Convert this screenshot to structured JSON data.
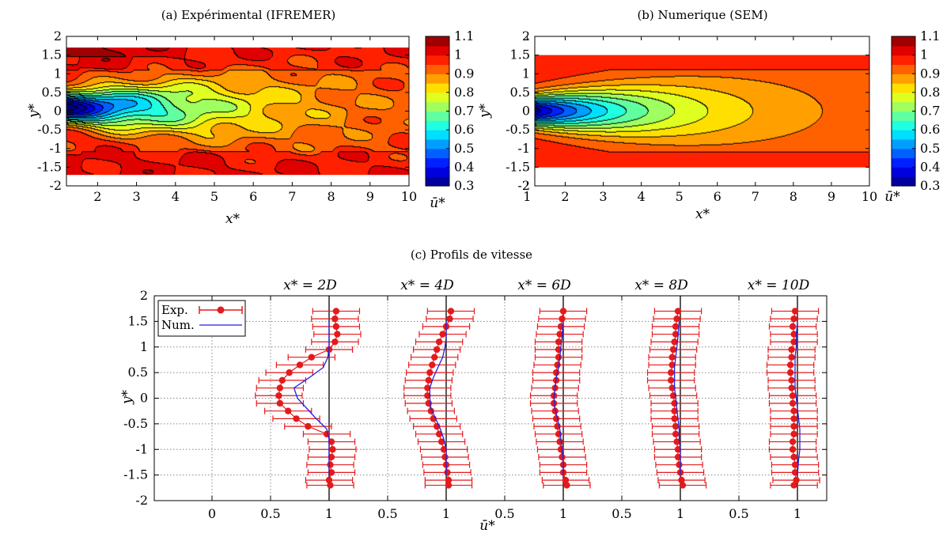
{
  "chart_data": [
    {
      "type": "heatmap",
      "title": "(a)  Expérimental (IFREMER)",
      "xlabel": "x*",
      "ylabel": "y*",
      "xlim": [
        1.2,
        10
      ],
      "ylim": [
        -2,
        2
      ],
      "data_ylim": [
        -1.7,
        1.7
      ],
      "xticks": [
        "2",
        "3",
        "4",
        "5",
        "6",
        "7",
        "8",
        "9",
        "10"
      ],
      "yticks": [
        "2",
        "1.5",
        "1",
        "0.5",
        "0",
        "-0.5",
        "-1",
        "-1.5",
        "-2"
      ],
      "colorbar": {
        "label": "ū*",
        "range": [
          0.3,
          1.1
        ],
        "ticks": [
          "1.1",
          "1",
          "0.9",
          "0.8",
          "0.7",
          "0.6",
          "0.5",
          "0.4",
          "0.3"
        ]
      },
      "wake": {
        "min_value": 0.3,
        "center_y": 0.1,
        "far_value": 0.98,
        "noise": true
      }
    },
    {
      "type": "heatmap",
      "title": "(b)  Numerique (SEM)",
      "xlabel": "x*",
      "ylabel": "y*",
      "xlim": [
        1.2,
        10
      ],
      "ylim": [
        -2,
        2
      ],
      "data_ylim": [
        -1.5,
        1.5
      ],
      "xticks": [
        "1",
        "2",
        "3",
        "4",
        "5",
        "6",
        "7",
        "8",
        "9",
        "10"
      ],
      "yticks": [
        "2",
        "1.5",
        "1",
        "0.5",
        "0",
        "-0.5",
        "-1",
        "-1.5",
        "-2"
      ],
      "colorbar": {
        "label": "ū*",
        "range": [
          0.3,
          1.1
        ],
        "ticks": [
          "1.1",
          "1",
          "0.9",
          "0.8",
          "0.7",
          "0.6",
          "0.5",
          "0.4",
          "0.3"
        ]
      },
      "wake": {
        "min_value": 0.35,
        "center_y": 0.0,
        "far_value": 0.97,
        "noise": false
      }
    },
    {
      "type": "line",
      "title": "(c)  Profils de vitesse",
      "xlabel": "ū*",
      "ylabel": "y*",
      "ylim": [
        -2,
        2
      ],
      "yticks": [
        "2",
        "1.5",
        "1",
        "0.5",
        "0",
        "-0.5",
        "-1",
        "-1.5",
        "-2"
      ],
      "xticks": [
        "0",
        "0.5",
        "1",
        "0.5",
        "1",
        "0.5",
        "1",
        "0.5",
        "1",
        "0.5",
        "1"
      ],
      "grid": true,
      "legend": {
        "position": "top-left",
        "entries": [
          "Exp.",
          "Num."
        ]
      },
      "error_bar_halfwidth": 0.2,
      "y_points": [
        1.7,
        1.55,
        1.4,
        1.25,
        1.1,
        0.95,
        0.8,
        0.65,
        0.5,
        0.35,
        0.2,
        0.05,
        -0.1,
        -0.25,
        -0.4,
        -0.55,
        -0.7,
        -0.85,
        -1.0,
        -1.15,
        -1.3,
        -1.45,
        -1.6,
        -1.7
      ],
      "profiles": [
        {
          "label": "x* = 2D",
          "exp": [
            1.06,
            1.05,
            1.06,
            1.07,
            1.05,
            1.0,
            0.85,
            0.75,
            0.66,
            0.6,
            0.58,
            0.57,
            0.58,
            0.65,
            0.72,
            0.82,
            0.98,
            1.02,
            1.03,
            1.02,
            1.01,
            1.02,
            1.0,
            1.01
          ],
          "num_y": [
            1.5,
            1.2,
            1.0,
            0.8,
            0.6,
            0.4,
            0.2,
            0.0,
            -0.2,
            -0.4,
            -0.6,
            -0.8,
            -1.0,
            -1.2,
            -1.5
          ],
          "num": [
            1.0,
            1.0,
            1.0,
            0.99,
            0.95,
            0.83,
            0.7,
            0.73,
            0.81,
            0.89,
            0.98,
            1.0,
            1.0,
            1.0,
            1.0
          ]
        },
        {
          "label": "x* = 4D",
          "exp": [
            1.04,
            1.03,
            1.0,
            0.97,
            0.94,
            0.92,
            0.9,
            0.88,
            0.86,
            0.85,
            0.84,
            0.84,
            0.85,
            0.87,
            0.89,
            0.92,
            0.94,
            0.96,
            0.98,
            0.99,
            1.0,
            1.01,
            1.02,
            1.02
          ],
          "num_y": [
            1.5,
            1.2,
            1.0,
            0.8,
            0.6,
            0.4,
            0.2,
            0.0,
            -0.2,
            -0.4,
            -0.6,
            -0.8,
            -1.0,
            -1.2,
            -1.5
          ],
          "num": [
            1.0,
            1.0,
            0.99,
            0.97,
            0.93,
            0.89,
            0.86,
            0.86,
            0.87,
            0.91,
            0.95,
            0.98,
            1.0,
            1.0,
            1.0
          ]
        },
        {
          "label": "x* = 6D",
          "exp": [
            1.0,
            0.99,
            0.98,
            0.97,
            0.96,
            0.96,
            0.96,
            0.95,
            0.94,
            0.94,
            0.93,
            0.92,
            0.92,
            0.93,
            0.94,
            0.95,
            0.96,
            0.97,
            0.98,
            0.99,
            1.0,
            1.0,
            1.02,
            1.03
          ],
          "num_y": [
            1.5,
            1.2,
            1.0,
            0.8,
            0.6,
            0.4,
            0.2,
            0.0,
            -0.2,
            -0.4,
            -0.6,
            -0.8,
            -1.0,
            -1.2,
            -1.5
          ],
          "num": [
            1.0,
            0.99,
            0.98,
            0.97,
            0.96,
            0.94,
            0.93,
            0.92,
            0.93,
            0.95,
            0.97,
            0.98,
            0.99,
            1.0,
            1.0
          ]
        },
        {
          "label": "x* = 8D",
          "exp": [
            0.98,
            0.97,
            0.96,
            0.96,
            0.95,
            0.94,
            0.93,
            0.93,
            0.92,
            0.92,
            0.93,
            0.94,
            0.95,
            0.95,
            0.95,
            0.96,
            0.96,
            0.97,
            0.98,
            0.98,
            0.99,
            1.0,
            1.01,
            1.02
          ],
          "num_y": [
            1.5,
            1.2,
            1.0,
            0.8,
            0.6,
            0.4,
            0.2,
            0.0,
            -0.2,
            -0.4,
            -0.6,
            -0.8,
            -1.0,
            -1.2,
            -1.5
          ],
          "num": [
            0.99,
            0.98,
            0.97,
            0.96,
            0.95,
            0.95,
            0.95,
            0.96,
            0.97,
            0.98,
            0.99,
            0.99,
            1.0,
            1.0,
            1.0
          ]
        },
        {
          "label": "x* = 10D",
          "exp": [
            0.98,
            0.97,
            0.96,
            0.97,
            0.97,
            0.95,
            0.95,
            0.94,
            0.94,
            0.95,
            0.95,
            0.96,
            0.96,
            0.97,
            0.97,
            0.97,
            0.97,
            0.96,
            0.96,
            0.97,
            0.98,
            0.98,
            0.99,
            0.97
          ],
          "num_y": [
            1.5,
            1.2,
            1.0,
            0.8,
            0.6,
            0.4,
            0.2,
            0.0,
            -0.2,
            -0.4,
            -0.6,
            -0.8,
            -1.0,
            -1.2,
            -1.5
          ],
          "num": [
            1.0,
            0.99,
            0.99,
            0.98,
            0.98,
            0.98,
            0.98,
            0.99,
            1.0,
            1.01,
            1.02,
            1.02,
            1.02,
            1.01,
            1.0
          ]
        }
      ]
    }
  ]
}
